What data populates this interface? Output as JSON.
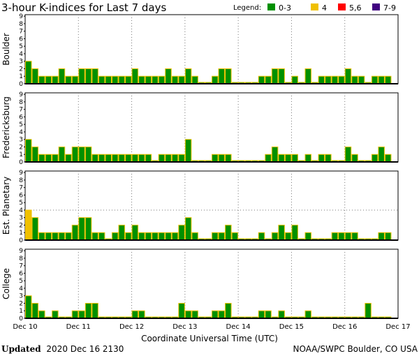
{
  "chart_data": {
    "type": "bar",
    "title": "3-hour K-indices for Last 7 days",
    "legend": {
      "label": "Legend:",
      "placement": "top-right",
      "entries": [
        {
          "label": "0-3",
          "color": "#009000"
        },
        {
          "label": "4",
          "color": "#f0c000"
        },
        {
          "label": "5,6",
          "color": "#ff0000"
        },
        {
          "label": "7-9",
          "color": "#400080"
        }
      ]
    },
    "outline_color": "#f0c000",
    "xlabel": "Coordinate Universal Time (UTC)",
    "x_ticks": [
      "Dec 10",
      "Dec 11",
      "Dec 12",
      "Dec 13",
      "Dec 14",
      "Dec 15",
      "Dec 16",
      "Dec 17"
    ],
    "bars_per_day": 8,
    "ylim": [
      0,
      9
    ],
    "y_ticks": [
      "0",
      "1",
      "2",
      "3",
      "4",
      "5",
      "6",
      "7",
      "8",
      "9"
    ],
    "series": [
      {
        "name": "Boulder",
        "values": [
          3,
          2,
          1,
          1,
          1,
          2,
          1,
          1,
          2,
          2,
          2,
          1,
          1,
          1,
          1,
          1,
          2,
          1,
          1,
          1,
          1,
          2,
          1,
          1,
          2,
          1,
          0,
          0,
          1,
          2,
          2,
          0,
          0,
          0,
          0,
          1,
          1,
          2,
          2,
          0,
          1,
          0,
          2,
          0,
          1,
          1,
          1,
          1,
          2,
          1,
          1,
          0,
          1,
          1,
          1,
          null
        ]
      },
      {
        "name": "Fredericksburg",
        "values": [
          3,
          2,
          1,
          1,
          1,
          2,
          1,
          2,
          2,
          2,
          1,
          1,
          1,
          1,
          1,
          1,
          1,
          1,
          1,
          0,
          1,
          1,
          1,
          1,
          3,
          0,
          0,
          0,
          1,
          1,
          1,
          0,
          0,
          0,
          0,
          0,
          1,
          2,
          1,
          1,
          1,
          0,
          1,
          0,
          1,
          1,
          0,
          0,
          2,
          1,
          0,
          0,
          1,
          2,
          1,
          null
        ]
      },
      {
        "name": "Est. Planetary",
        "values": [
          4,
          3,
          1,
          1,
          1,
          1,
          1,
          2,
          3,
          3,
          1,
          1,
          0,
          1,
          2,
          1,
          2,
          1,
          1,
          1,
          1,
          1,
          1,
          2,
          3,
          1,
          0,
          0,
          1,
          1,
          2,
          1,
          0,
          0,
          0,
          1,
          0,
          1,
          2,
          1,
          2,
          0,
          1,
          0,
          0,
          0,
          1,
          1,
          1,
          1,
          0,
          0,
          0,
          1,
          1,
          null
        ],
        "threshold": 4
      },
      {
        "name": "College",
        "values": [
          3,
          2,
          1,
          0,
          1,
          0,
          0,
          1,
          1,
          2,
          2,
          0,
          0,
          0,
          0,
          0,
          1,
          1,
          0,
          0,
          0,
          0,
          0,
          2,
          1,
          1,
          0,
          0,
          1,
          1,
          2,
          0,
          0,
          0,
          0,
          1,
          1,
          0,
          1,
          0,
          0,
          0,
          1,
          0,
          0,
          0,
          0,
          0,
          0,
          0,
          0,
          2,
          0,
          0,
          0,
          null
        ]
      }
    ]
  },
  "footer": {
    "updated_label": "Updated",
    "updated_value": "2020 Dec 16 2130",
    "source": "NOAA/SWPC Boulder, CO USA"
  }
}
